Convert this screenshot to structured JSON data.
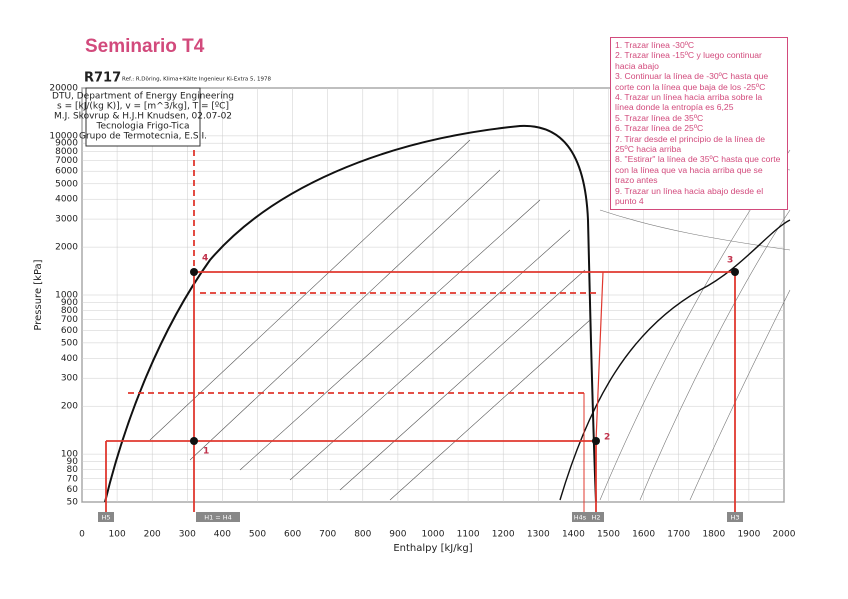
{
  "slide": {
    "title": "Seminario T4",
    "notes": [
      "1. Trazar línea -30ºC",
      "2. Trazar línea -15ºC y luego continuar hacia abajo",
      "3. Continuar la línea de -30ºC hasta que corte con la línea que baja de los -25ºC",
      "4. Trazar un línea hacia arriba sobre la línea donde la entropía es 6,25",
      "5. Trazar línea de 35ºC",
      "6. Trazar línea de 25ºC",
      "7. Tirar desde el principio de la línea de 25ºC hacia arriba",
      "8. \"Estirar\" la línea de 35ºC hasta que corte con la línea que va hacia arriba que se trazo antes",
      "9. Trazar un línea hacia abajo desde el punto 4"
    ]
  },
  "chart": {
    "header": "R717",
    "reference": "Ref.: R.Döring, Klima+Kälte Ingenieur Ki-Extra 5, 1978",
    "info": [
      "DTU, Department of Energy Engineering",
      "s = [kJ/(kg K)], v = [m^3/kg], T = [ºC]",
      "M.J. Skovrup & H.J.H Knudsen, 02.07-02",
      "Tecnologia Frigo-Tica",
      "Grupo de Termotecnia, E.S.I."
    ],
    "x_label": "Enthalpy [kJ/kg]",
    "y_label": "Pressure [kPa]",
    "xlim": [
      0,
      2000
    ],
    "ylim": [
      50,
      20000
    ],
    "xticks": [
      0,
      100,
      200,
      300,
      400,
      500,
      600,
      700,
      800,
      900,
      1000,
      1100,
      1200,
      1300,
      1400,
      1500,
      1600,
      1700,
      1800,
      1900,
      2000
    ],
    "yticks": [
      50,
      60,
      70,
      80,
      90,
      100,
      200,
      300,
      400,
      500,
      600,
      700,
      800,
      900,
      1000,
      2000,
      3000,
      4000,
      5000,
      6000,
      7000,
      8000,
      9000,
      10000,
      20000
    ],
    "points": [
      "1",
      "2",
      "3",
      "4"
    ],
    "h_labels": [
      "H5",
      "H1 = H4",
      "H4s",
      "H2",
      "H3"
    ]
  }
}
